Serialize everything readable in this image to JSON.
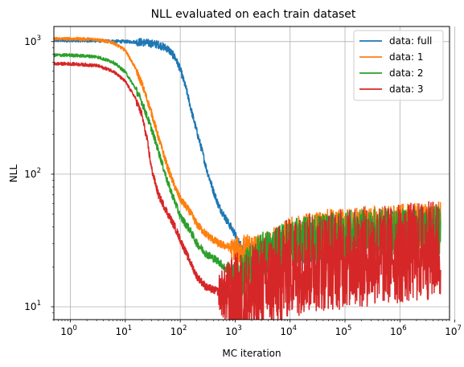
{
  "chart_data": {
    "type": "line",
    "title": "NLL evaluated on each train dataset",
    "xlabel": "MC iteration",
    "ylabel": "NLL",
    "xscale": "log",
    "yscale": "log",
    "xlim": [
      0.5,
      8000000
    ],
    "ylim": [
      8,
      1300
    ],
    "grid": true,
    "legend_position": "top-right",
    "x_ticks": [
      {
        "value": 1,
        "label": "10",
        "exp": "0"
      },
      {
        "value": 10,
        "label": "10",
        "exp": "1"
      },
      {
        "value": 100,
        "label": "10",
        "exp": "2"
      },
      {
        "value": 1000,
        "label": "10",
        "exp": "3"
      },
      {
        "value": 10000,
        "label": "10",
        "exp": "4"
      },
      {
        "value": 100000,
        "label": "10",
        "exp": "5"
      },
      {
        "value": 1000000,
        "label": "10",
        "exp": "6"
      },
      {
        "value": 10000000,
        "label": "10",
        "exp": "7"
      }
    ],
    "y_ticks": [
      {
        "value": 10,
        "label": "10",
        "exp": "1"
      },
      {
        "value": 100,
        "label": "10",
        "exp": "2"
      },
      {
        "value": 1000,
        "label": "10",
        "exp": "3"
      }
    ],
    "series": [
      {
        "name": "data: full",
        "color": "#1f77b4",
        "points": [
          [
            0.5,
            1020
          ],
          [
            1,
            1020
          ],
          [
            3,
            1015
          ],
          [
            10,
            1000
          ],
          [
            20,
            990
          ],
          [
            40,
            950
          ],
          [
            60,
            880
          ],
          [
            80,
            760
          ],
          [
            100,
            620
          ],
          [
            130,
            430
          ],
          [
            160,
            300
          ],
          [
            200,
            210
          ],
          [
            250,
            150
          ],
          [
            300,
            110
          ],
          [
            400,
            75
          ],
          [
            500,
            58
          ],
          [
            700,
            45
          ],
          [
            900,
            38
          ],
          [
            1200,
            30
          ],
          [
            1500,
            27
          ],
          [
            2000,
            25
          ],
          [
            3000,
            24
          ],
          [
            5000,
            25
          ],
          [
            8000,
            27
          ],
          [
            15000,
            30
          ],
          [
            40000,
            32
          ],
          [
            100000,
            34
          ],
          [
            300000,
            36
          ],
          [
            1000000,
            38
          ],
          [
            5500000,
            40
          ]
        ],
        "noise_from": 1500,
        "noise_amp": 0.15
      },
      {
        "name": "data: 1",
        "color": "#ff7f0e",
        "points": [
          [
            0.5,
            1050
          ],
          [
            1,
            1050
          ],
          [
            3,
            1040
          ],
          [
            6,
            980
          ],
          [
            10,
            860
          ],
          [
            15,
            640
          ],
          [
            20,
            480
          ],
          [
            30,
            290
          ],
          [
            40,
            190
          ],
          [
            60,
            110
          ],
          [
            80,
            80
          ],
          [
            100,
            65
          ],
          [
            150,
            52
          ],
          [
            200,
            42
          ],
          [
            300,
            35
          ],
          [
            500,
            30
          ],
          [
            800,
            28
          ],
          [
            1000,
            27
          ],
          [
            1500,
            25
          ],
          [
            2000,
            23
          ],
          [
            3000,
            24
          ],
          [
            5000,
            27
          ],
          [
            10000,
            32
          ],
          [
            30000,
            36
          ],
          [
            100000,
            38
          ],
          [
            1000000,
            40
          ],
          [
            5500000,
            42
          ]
        ],
        "noise_from": 800,
        "noise_amp": 0.17
      },
      {
        "name": "data: 2",
        "color": "#2ca02c",
        "points": [
          [
            0.5,
            790
          ],
          [
            1,
            790
          ],
          [
            3,
            770
          ],
          [
            6,
            700
          ],
          [
            10,
            590
          ],
          [
            15,
            450
          ],
          [
            20,
            350
          ],
          [
            30,
            220
          ],
          [
            40,
            150
          ],
          [
            60,
            85
          ],
          [
            80,
            62
          ],
          [
            100,
            48
          ],
          [
            150,
            38
          ],
          [
            200,
            30
          ],
          [
            300,
            25
          ],
          [
            500,
            22
          ],
          [
            800,
            18
          ],
          [
            1000,
            16
          ],
          [
            1500,
            18
          ],
          [
            2000,
            20
          ],
          [
            3000,
            24
          ],
          [
            5000,
            27
          ],
          [
            10000,
            30
          ],
          [
            30000,
            33
          ],
          [
            100000,
            35
          ],
          [
            1000000,
            37
          ],
          [
            5500000,
            38
          ]
        ],
        "noise_from": 700,
        "noise_amp": 0.18
      },
      {
        "name": "data: 3",
        "color": "#d62728",
        "points": [
          [
            0.5,
            680
          ],
          [
            1,
            680
          ],
          [
            3,
            660
          ],
          [
            6,
            600
          ],
          [
            10,
            500
          ],
          [
            15,
            380
          ],
          [
            20,
            280
          ],
          [
            25,
            180
          ],
          [
            30,
            110
          ],
          [
            40,
            70
          ],
          [
            60,
            50
          ],
          [
            80,
            40
          ],
          [
            100,
            32
          ],
          [
            150,
            22
          ],
          [
            200,
            17
          ],
          [
            300,
            14
          ],
          [
            500,
            13
          ],
          [
            800,
            12
          ],
          [
            1000,
            11
          ],
          [
            1500,
            11
          ],
          [
            2000,
            12
          ],
          [
            3000,
            14
          ],
          [
            5000,
            16
          ],
          [
            10000,
            20
          ],
          [
            30000,
            22
          ],
          [
            100000,
            23
          ],
          [
            1000000,
            25
          ],
          [
            5500000,
            27
          ]
        ],
        "noise_from": 500,
        "noise_amp": 0.38
      }
    ]
  }
}
